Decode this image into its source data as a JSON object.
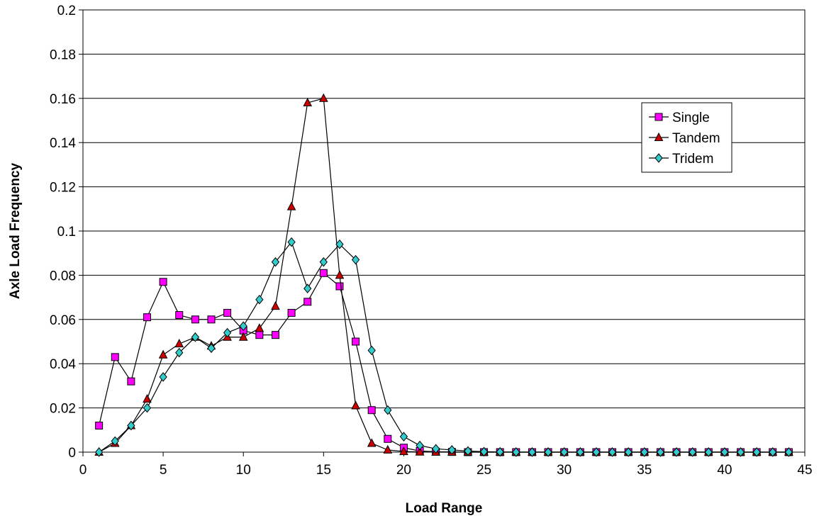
{
  "chart_data": {
    "type": "line",
    "title": "",
    "xlabel": "Load Range",
    "ylabel": "Axle Load Frequency",
    "xlim": [
      0,
      45
    ],
    "ylim": [
      0,
      0.2
    ],
    "x_ticks": [
      0,
      5,
      10,
      15,
      20,
      25,
      30,
      35,
      40,
      45
    ],
    "y_ticks": [
      0,
      0.02,
      0.04,
      0.06,
      0.08,
      0.1,
      0.12,
      0.14,
      0.16,
      0.18,
      0.2
    ],
    "x_tick_labels": [
      "0",
      "5",
      "10",
      "15",
      "20",
      "25",
      "30",
      "35",
      "40",
      "45"
    ],
    "y_tick_labels": [
      "0",
      "0.02",
      "0.04",
      "0.06",
      "0.08",
      "0.1",
      "0.12",
      "0.14",
      "0.16",
      "0.18",
      "0.2"
    ],
    "grid": "horizontal",
    "legend_position": "right",
    "x": [
      1,
      2,
      3,
      4,
      5,
      6,
      7,
      8,
      9,
      10,
      11,
      12,
      13,
      14,
      15,
      16,
      17,
      18,
      19,
      20,
      21,
      22,
      23,
      24,
      25,
      26,
      27,
      28,
      29,
      30,
      31,
      32,
      33,
      34,
      35,
      36,
      37,
      38,
      39,
      40,
      41,
      42,
      43,
      44
    ],
    "series": [
      {
        "name": "Single",
        "marker": "square",
        "color": "#ff00ff",
        "values": [
          0.012,
          0.043,
          0.032,
          0.061,
          0.077,
          0.062,
          0.06,
          0.06,
          0.063,
          0.055,
          0.053,
          0.053,
          0.063,
          0.068,
          0.081,
          0.075,
          0.05,
          0.019,
          0.006,
          0.002,
          0.0005,
          0.0002,
          0.0001,
          0,
          0,
          0,
          0,
          0,
          0,
          0,
          0,
          0,
          0,
          0,
          0,
          0,
          0,
          0,
          0,
          0,
          0,
          0,
          0,
          0
        ]
      },
      {
        "name": "Tandem",
        "marker": "triangle",
        "color": "#cc0000",
        "values": [
          0,
          0.004,
          0.012,
          0.024,
          0.044,
          0.049,
          0.052,
          0.048,
          0.052,
          0.052,
          0.056,
          0.066,
          0.111,
          0.158,
          0.16,
          0.08,
          0.021,
          0.004,
          0.001,
          0.0003,
          0.0001,
          0,
          0,
          0,
          0,
          0,
          0,
          0,
          0,
          0,
          0,
          0,
          0,
          0,
          0,
          0,
          0,
          0,
          0,
          0,
          0,
          0,
          0,
          0
        ]
      },
      {
        "name": "Tridem",
        "marker": "diamond",
        "color": "#33cccc",
        "values": [
          0,
          0.005,
          0.012,
          0.02,
          0.034,
          0.045,
          0.052,
          0.047,
          0.054,
          0.057,
          0.069,
          0.086,
          0.095,
          0.074,
          0.086,
          0.094,
          0.087,
          0.046,
          0.019,
          0.007,
          0.003,
          0.0015,
          0.001,
          0.0005,
          0.0002,
          0.0001,
          0,
          0,
          0,
          0,
          0,
          0,
          0,
          0,
          0,
          0,
          0,
          0,
          0,
          0,
          0,
          0,
          0,
          0
        ]
      }
    ]
  }
}
